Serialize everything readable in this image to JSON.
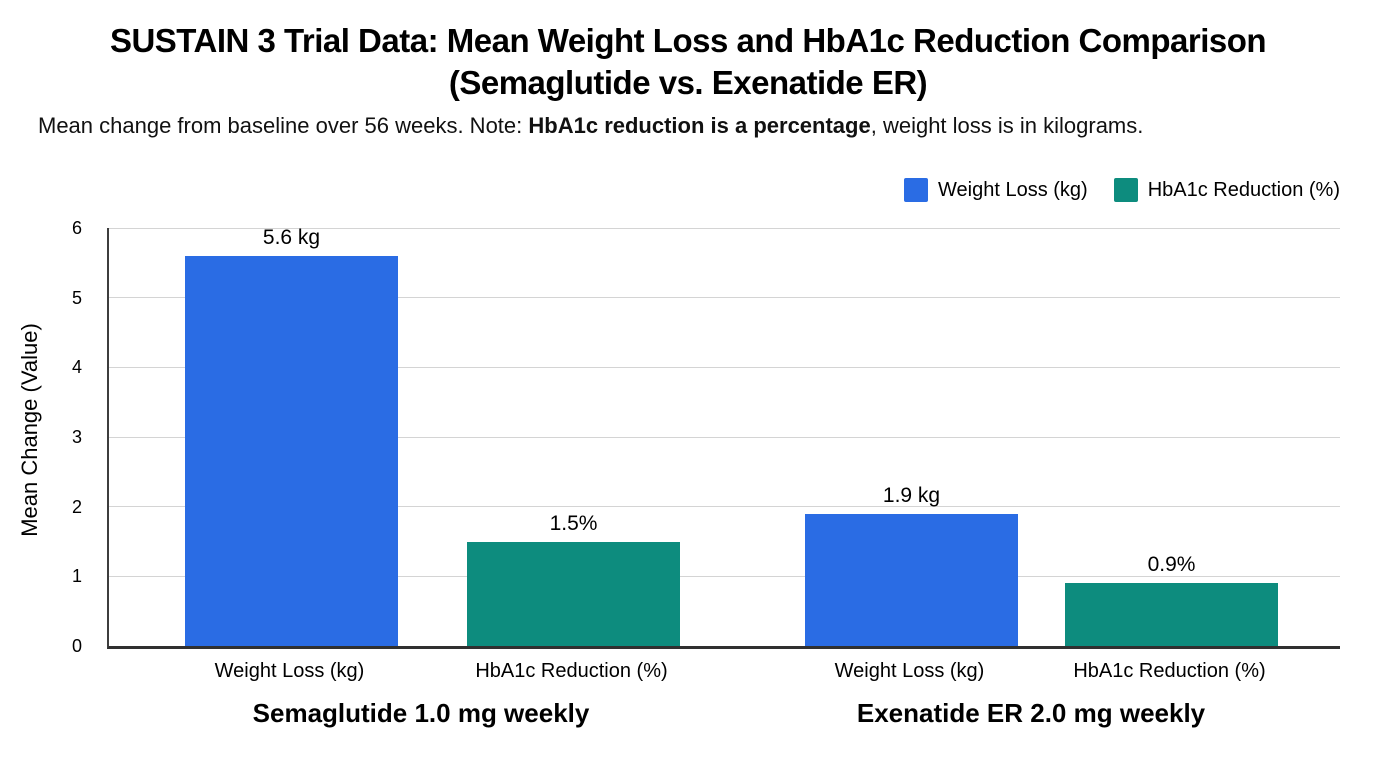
{
  "header": {
    "title_line1": "SUSTAIN 3 Trial Data: Mean Weight Loss and HbA1c Reduction Comparison",
    "title_line2": "(Semaglutide vs. Exenatide ER)",
    "subtitle_prefix": "Mean change from baseline over 56 weeks. Note: ",
    "subtitle_bold": "HbA1c reduction is a percentage",
    "subtitle_suffix": ", weight loss is in kilograms."
  },
  "legend": {
    "items": [
      {
        "label": "Weight Loss (kg)",
        "color": "#2a6ce4"
      },
      {
        "label": "HbA1c Reduction (%)",
        "color": "#0d8c7e"
      }
    ]
  },
  "colors": {
    "weight_loss_blue": "#2a6ce4",
    "hba1c_teal": "#0d8c7e",
    "gridline": "#d4d4d4",
    "axis": "#303030"
  },
  "chart_data": {
    "type": "bar",
    "title": "SUSTAIN 3 Trial Data: Mean Weight Loss and HbA1c Reduction Comparison (Semaglutide vs. Exenatide ER)",
    "subtitle": "Mean change from baseline over 56 weeks. Note: HbA1c reduction is a percentage, weight loss is in kilograms.",
    "ylabel": "Mean Change (Value)",
    "xlabel": "",
    "ylim": [
      0,
      6
    ],
    "yticks": [
      0,
      1,
      2,
      3,
      4,
      5,
      6
    ],
    "grid": true,
    "legend_position": "top-right",
    "series_names": [
      "Weight Loss (kg)",
      "HbA1c Reduction (%)"
    ],
    "groups": [
      {
        "label": "Semaglutide 1.0 mg weekly",
        "bars": [
          {
            "category": "Weight Loss (kg)",
            "series": "Weight Loss (kg)",
            "value": 5.6,
            "value_label": "5.6 kg",
            "color": "#2a6ce4"
          },
          {
            "category": "HbA1c Reduction (%)",
            "series": "HbA1c Reduction (%)",
            "value": 1.5,
            "value_label": "1.5%",
            "color": "#0d8c7e"
          }
        ]
      },
      {
        "label": "Exenatide ER 2.0 mg weekly",
        "bars": [
          {
            "category": "Weight Loss (kg)",
            "series": "Weight Loss (kg)",
            "value": 1.9,
            "value_label": "1.9 kg",
            "color": "#2a6ce4"
          },
          {
            "category": "HbA1c Reduction (%)",
            "series": "HbA1c Reduction (%)",
            "value": 0.9,
            "value_label": "0.9%",
            "color": "#0d8c7e"
          }
        ]
      }
    ]
  }
}
